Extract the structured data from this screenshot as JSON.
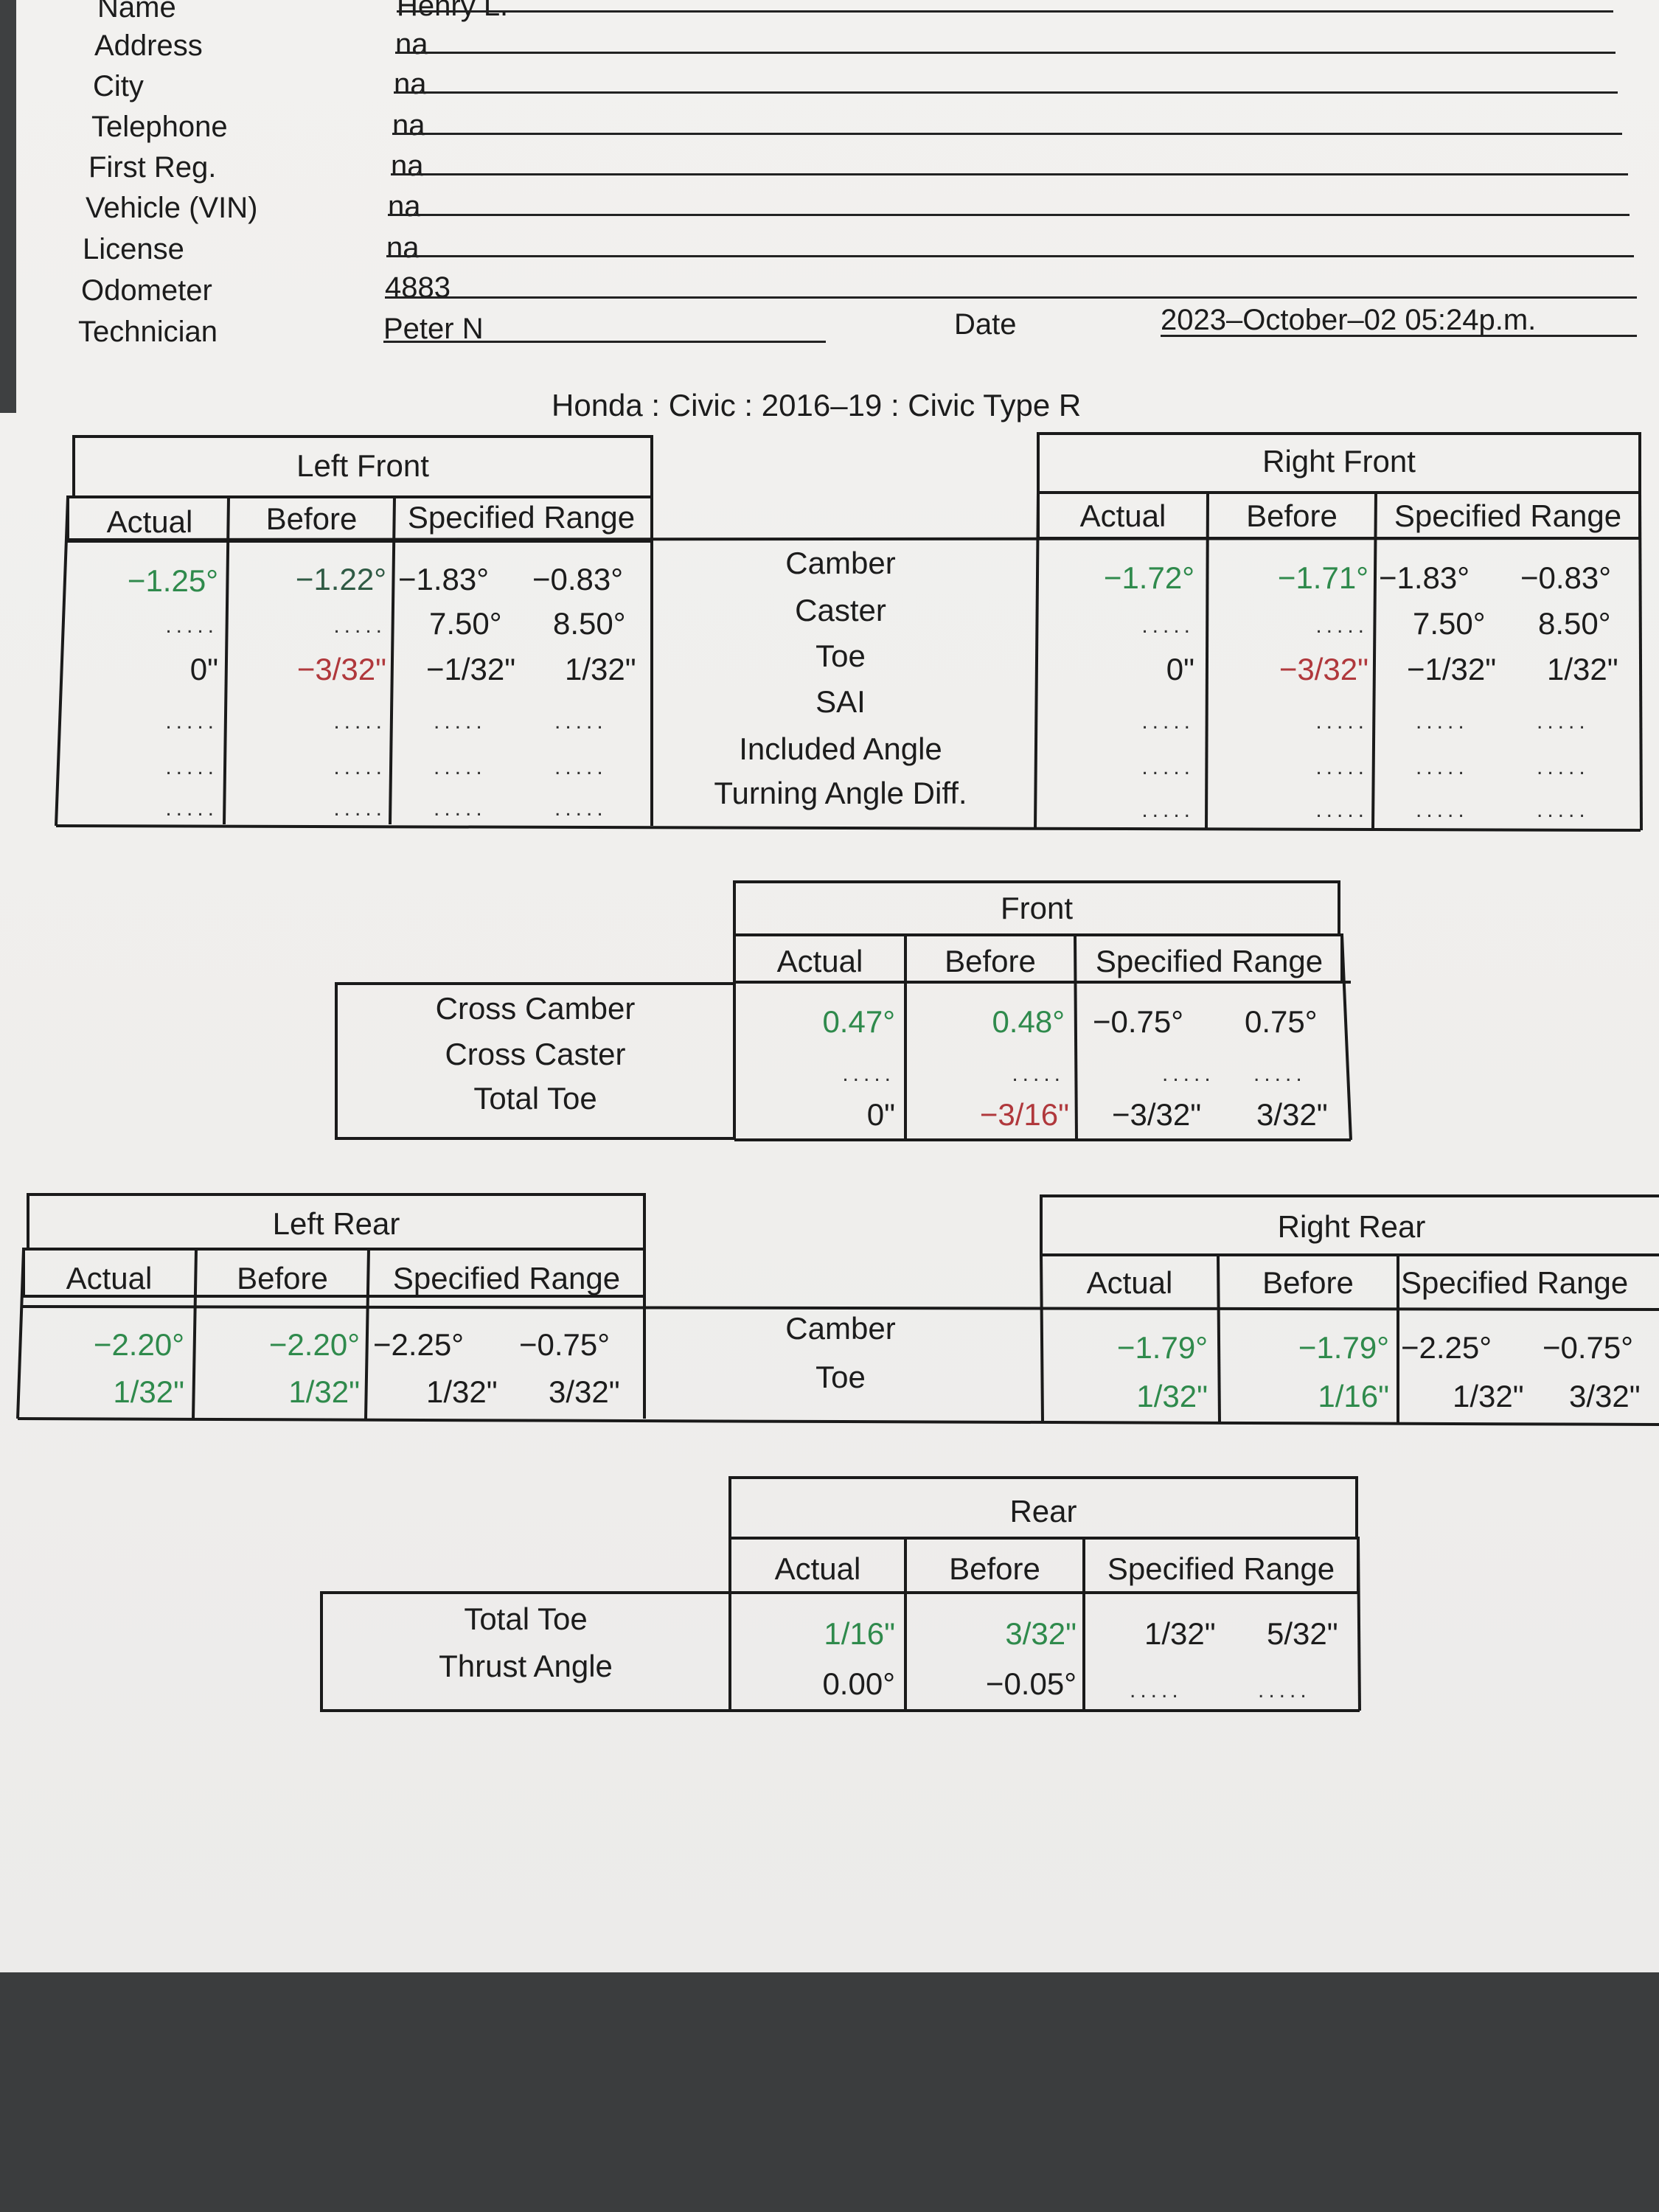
{
  "customer": {
    "name_label": "Name",
    "name_value": "Henry L.",
    "address_label": "Address",
    "address_value": "na",
    "city_label": "City",
    "city_value": "na",
    "telephone_label": "Telephone",
    "telephone_value": "na",
    "first_reg_label": "First Reg.",
    "first_reg_value": "na",
    "vin_label": "Vehicle (VIN)",
    "vin_value": "na",
    "license_label": "License",
    "license_value": "na",
    "odometer_label": "Odometer",
    "odometer_value": "4883",
    "technician_label": "Technician",
    "technician_value": "Peter  N",
    "date_label": "Date",
    "date_value": "2023–October–02 05:24p.m."
  },
  "vehicle": "Honda : Civic : 2016–19 : Civic Type R",
  "col_headers": {
    "actual": "Actual",
    "before": "Before",
    "spec": "Specified Range"
  },
  "dots": ".....",
  "front_labels": [
    "Camber",
    "Caster",
    "Toe",
    "SAI",
    "Included Angle",
    "Turning Angle Diff."
  ],
  "left_front": {
    "title": "Left Front",
    "camber": {
      "actual": "−1.25°",
      "before": "−1.22°",
      "min": "−1.83°",
      "max": "−0.83°"
    },
    "caster": {
      "min": "7.50°",
      "max": "8.50°"
    },
    "toe": {
      "actual": "0\"",
      "before": "−3/32\"",
      "min": "−1/32\"",
      "max": "1/32\""
    }
  },
  "right_front": {
    "title": "Right Front",
    "camber": {
      "actual": "−1.72°",
      "before": "−1.71°",
      "min": "−1.83°",
      "max": "−0.83°"
    },
    "caster": {
      "min": "7.50°",
      "max": "8.50°"
    },
    "toe": {
      "actual": "0\"",
      "before": "−3/32\"",
      "min": "−1/32\"",
      "max": "1/32\""
    }
  },
  "front": {
    "title": "Front",
    "labels": [
      "Cross Camber",
      "Cross Caster",
      "Total Toe"
    ],
    "cross_camber": {
      "actual": "0.47°",
      "before": "0.48°",
      "min": "−0.75°",
      "max": "0.75°"
    },
    "total_toe": {
      "actual": "0\"",
      "before": "−3/16\"",
      "min": "−3/32\"",
      "max": "3/32\""
    }
  },
  "rear_labels": [
    "Camber",
    "Toe"
  ],
  "left_rear": {
    "title": "Left Rear",
    "camber": {
      "actual": "−2.20°",
      "before": "−2.20°",
      "min": "−2.25°",
      "max": "−0.75°"
    },
    "toe": {
      "actual": "1/32\"",
      "before": "1/32\"",
      "min": "1/32\"",
      "max": "3/32\""
    }
  },
  "right_rear": {
    "title": "Right Rear",
    "camber": {
      "actual": "−1.79°",
      "before": "−1.79°",
      "min": "−2.25°",
      "max": "−0.75°"
    },
    "toe": {
      "actual": "1/32\"",
      "before": "1/16\"",
      "min": "1/32\"",
      "max": "3/32\""
    }
  },
  "rear": {
    "title": "Rear",
    "labels": [
      "Total Toe",
      "Thrust Angle"
    ],
    "total_toe": {
      "actual": "1/16\"",
      "before": "3/32\"",
      "min": "1/32\"",
      "max": "5/32\""
    },
    "thrust_angle": {
      "actual": "0.00°",
      "before": "−0.05°"
    }
  },
  "colors": {
    "in_spec": "#2f8a4c",
    "out_of_spec": "#b0383c"
  }
}
